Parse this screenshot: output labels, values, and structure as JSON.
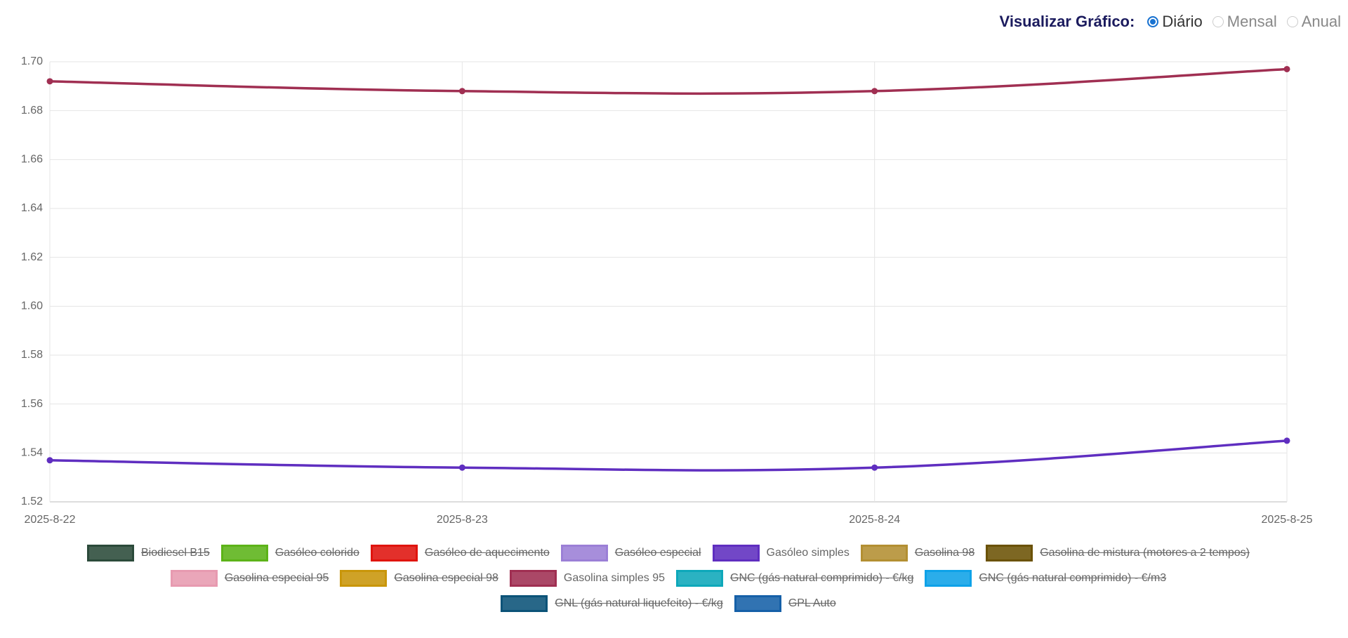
{
  "view_selector": {
    "label": "Visualizar Gráfico:",
    "options": [
      "Diário",
      "Mensal",
      "Anual"
    ],
    "selected": 0
  },
  "chart_data": {
    "type": "line",
    "categories": [
      "2025-8-22",
      "2025-8-23",
      "2025-8-24",
      "2025-8-25"
    ],
    "ylim": [
      1.52,
      1.7
    ],
    "yticks": [
      1.52,
      1.54,
      1.56,
      1.58,
      {
        "value": 1.6,
        "label": "1.60"
      },
      1.62,
      1.64,
      1.66,
      1.68,
      {
        "value": 1.7,
        "label": "1.70"
      }
    ],
    "grid": true,
    "legend": "bottom",
    "series": [
      {
        "name": "Biodiesel B15",
        "color": "#2b4a3a",
        "hidden": true,
        "values": [
          null,
          null,
          null,
          null
        ]
      },
      {
        "name": "Gasóleo colorido",
        "color": "#5cb318",
        "hidden": true,
        "values": [
          null,
          null,
          null,
          null
        ]
      },
      {
        "name": "Gasóleo de aquecimento",
        "color": "#e0140e",
        "hidden": true,
        "values": [
          null,
          null,
          null,
          null
        ]
      },
      {
        "name": "Gasóleo especial",
        "color": "#9b7fd6",
        "hidden": true,
        "values": [
          null,
          null,
          null,
          null
        ]
      },
      {
        "name": "Gasóleo simples",
        "color": "#5f2ec0",
        "hidden": false,
        "values": [
          1.537,
          1.534,
          1.534,
          1.545
        ]
      },
      {
        "name": "Gasolina 98",
        "color": "#b38f32",
        "hidden": true,
        "values": [
          null,
          null,
          null,
          null
        ]
      },
      {
        "name": "Gasolina de mistura (motores a 2 tempos)",
        "color": "#6b5205",
        "hidden": true,
        "values": [
          null,
          null,
          null,
          null
        ]
      },
      {
        "name": "Gasolina especial 95",
        "color": "#e79ab0",
        "hidden": true,
        "values": [
          null,
          null,
          null,
          null
        ]
      },
      {
        "name": "Gasolina especial 98",
        "color": "#c9960a",
        "hidden": true,
        "values": [
          null,
          null,
          null,
          null
        ]
      },
      {
        "name": "Gasolina simples 95",
        "color": "#a02f52",
        "hidden": false,
        "values": [
          1.692,
          1.688,
          1.688,
          1.697
        ]
      },
      {
        "name": "GNC (gás natural comprimido) - €/kg",
        "color": "#0ea8ba",
        "hidden": true,
        "values": [
          null,
          null,
          null,
          null
        ]
      },
      {
        "name": "GNC (gás natural comprimido) - €/m3",
        "color": "#0ea2e8",
        "hidden": true,
        "values": [
          null,
          null,
          null,
          null
        ]
      },
      {
        "name": "GNL (gás natural liquefeito) - €/kg",
        "color": "#0b5378",
        "hidden": true,
        "values": [
          null,
          null,
          null,
          null
        ]
      },
      {
        "name": "GPL Auto",
        "color": "#1560a8",
        "hidden": true,
        "values": [
          null,
          null,
          null,
          null
        ]
      }
    ]
  }
}
